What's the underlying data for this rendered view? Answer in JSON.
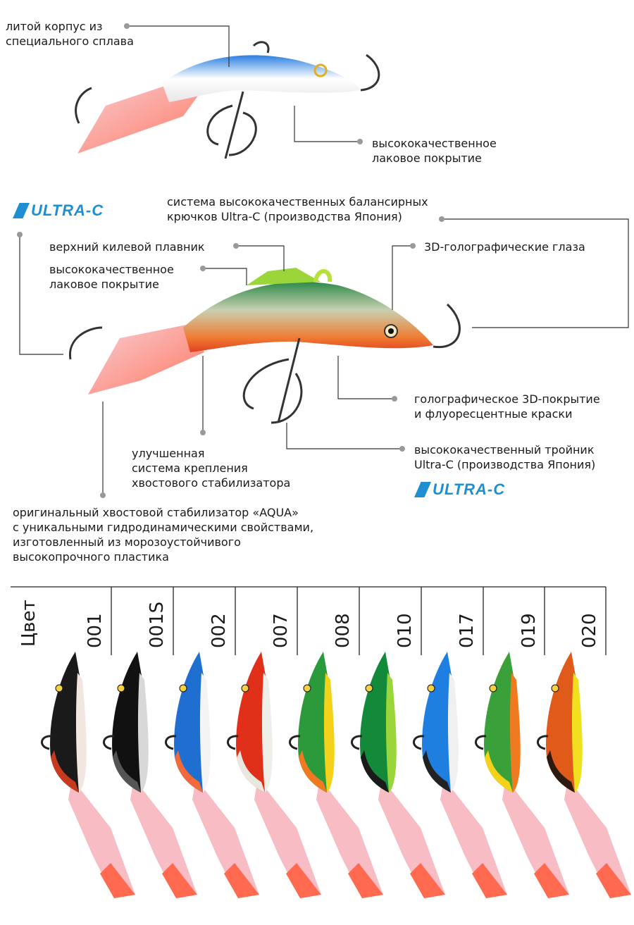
{
  "colors": {
    "accent_blue": "#1e8fd0",
    "leader_line": "#333333",
    "dot": "#999999"
  },
  "logo_text": "ULTRA-C",
  "callouts": {
    "cast_body": [
      "литой корпус из",
      "специального сплава"
    ],
    "lacquer_top": [
      "высококачественное",
      "лаковое покрытие"
    ],
    "hooks_system": [
      "система высококачественных балансирных",
      "крючков Ultra-C (производства Япония)"
    ],
    "keel_fin": "верхний килевой плавник",
    "lacquer_mid": [
      "высококачественное",
      "лаковое покрытие"
    ],
    "eyes": "3D-голографические глаза",
    "holographic": [
      "голографическое 3D-покрытие",
      "и флуоресцентные краски"
    ],
    "treble": [
      "высококачественный тройник",
      "Ultra-C (производства Япония)"
    ],
    "tail_mount": [
      "улучшенная",
      "система крепления",
      "хвостового стабилизатора"
    ],
    "aqua": [
      "оригинальный хвостовой стабилизатор «AQUA»",
      "с уникальными гидродинамическими свойствами,",
      "изготовленный из морозоустойчивого",
      "высокопрочного пластика"
    ]
  },
  "color_table": {
    "header": "Цвет",
    "codes": [
      "001",
      "001S",
      "002",
      "007",
      "008",
      "010",
      "017",
      "019",
      "020"
    ]
  },
  "lure_colors": [
    {
      "back": "#1a1a1a",
      "belly": "#f2e6e0",
      "side": "#c83a20"
    },
    {
      "back": "#111111",
      "belly": "#d8d8d8",
      "side": "#555555"
    },
    {
      "back": "#1f6fd0",
      "belly": "#f4f4f4",
      "side": "#f06a3a"
    },
    {
      "back": "#e0301a",
      "belly": "#efefea",
      "side": "#e8e8e0"
    },
    {
      "back": "#2a9a3a",
      "belly": "#f5d21a",
      "side": "#f07a20"
    },
    {
      "back": "#138a3a",
      "belly": "#9ad63a",
      "side": "#1a1a1a"
    },
    {
      "back": "#1e7fe0",
      "belly": "#f0f0f0",
      "side": "#222222"
    },
    {
      "back": "#3aa03a",
      "belly": "#f07a20",
      "side": "#f5d21a"
    },
    {
      "back": "#e05a1a",
      "belly": "#f0e020",
      "side": "#2a1a10"
    }
  ]
}
